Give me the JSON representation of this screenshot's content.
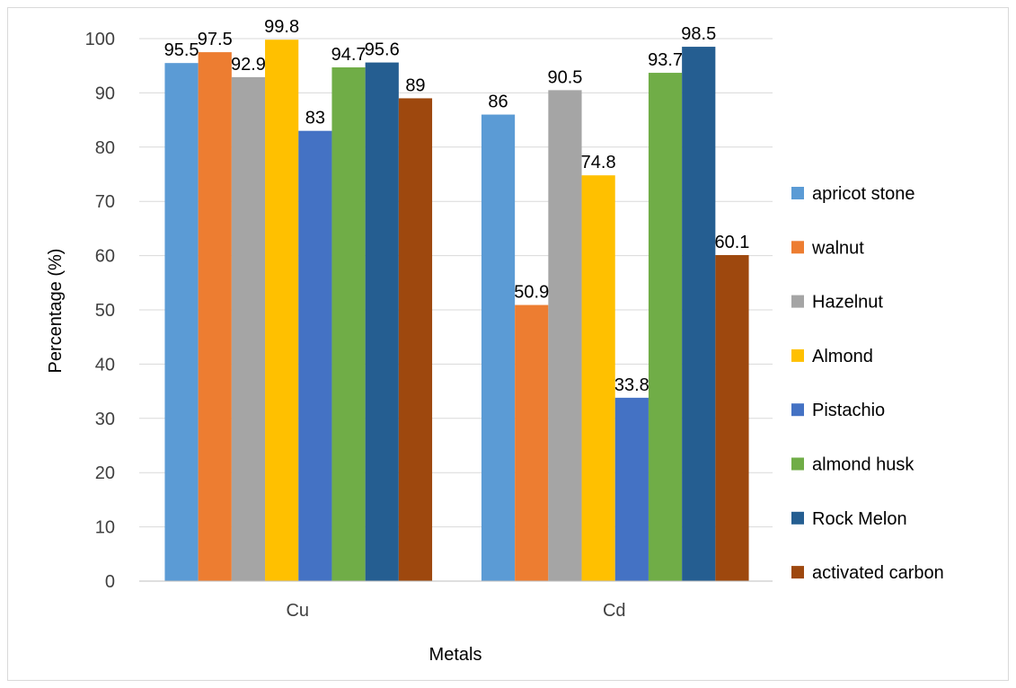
{
  "chart_data": {
    "type": "bar",
    "categories": [
      "Cu",
      "Cd"
    ],
    "series": [
      {
        "name": "apricot stone",
        "color": "#5B9BD5",
        "values": [
          95.5,
          86
        ]
      },
      {
        "name": "walnut",
        "color": "#ED7D31",
        "values": [
          97.5,
          50.9
        ]
      },
      {
        "name": "Hazelnut",
        "color": "#A5A5A5",
        "values": [
          92.9,
          90.5
        ]
      },
      {
        "name": "Almond",
        "color": "#FFC000",
        "values": [
          99.8,
          74.8
        ]
      },
      {
        "name": "Pistachio",
        "color": "#4472C4",
        "values": [
          83,
          33.8
        ]
      },
      {
        "name": "almond husk",
        "color": "#70AD47",
        "values": [
          94.7,
          93.7
        ]
      },
      {
        "name": "Rock Melon",
        "color": "#255E91",
        "values": [
          95.6,
          98.5
        ]
      },
      {
        "name": "activated carbon",
        "color": "#9E480E",
        "values": [
          89,
          60.1
        ]
      }
    ],
    "xlabel": "Metals",
    "ylabel": "Percentage (%)",
    "ylim": [
      0,
      100
    ],
    "yticks": [
      0,
      10,
      20,
      30,
      40,
      50,
      60,
      70,
      80,
      90,
      100
    ],
    "grid": true,
    "legend_position": "right"
  }
}
